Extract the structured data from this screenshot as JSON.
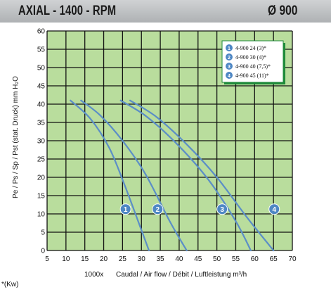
{
  "header": {
    "title": "AXIAL - 1400 - RPM",
    "diameter": "Ø 900"
  },
  "footnote": "*(Kw)",
  "colors": {
    "plot_bg": "#b9dd9d",
    "grid": "#111111",
    "curve": "#5b8ec7",
    "marker": "#4e87c4",
    "header": "#c0c2c4"
  },
  "chart_data": {
    "type": "line",
    "xlabel": "Caudal / Air flow / Débit / Luftleistung m³/h",
    "x_multiplier_label": "1000x",
    "ylabel": "Pe / Ps / Sp / Pst (stat. Druck) mm H₂O",
    "xlim": [
      5,
      70
    ],
    "ylim": [
      0,
      60
    ],
    "xticks": [
      5,
      10,
      15,
      20,
      25,
      30,
      35,
      40,
      45,
      50,
      55,
      60,
      65,
      70
    ],
    "yticks": [
      0,
      5,
      10,
      15,
      20,
      25,
      30,
      35,
      40,
      45,
      50,
      55,
      60
    ],
    "grid": true,
    "legend_position": "top-right",
    "series": [
      {
        "name": "4-900 24 (3)*",
        "marker": "1",
        "x": [
          11.2,
          16.5,
          21.5,
          25.5,
          29.5,
          32
        ],
        "y": [
          41,
          36,
          28,
          18,
          7,
          0
        ],
        "marker_at": [
          25.8,
          11.3
        ]
      },
      {
        "name": "4-900 30 (4)*",
        "marker": "2",
        "x": [
          14,
          19,
          25,
          31,
          37.5,
          42
        ],
        "y": [
          41,
          37,
          30,
          21,
          8,
          0
        ],
        "marker_at": [
          34.3,
          11.3
        ]
      },
      {
        "name": "4-900 40 (7,5)*",
        "marker": "3",
        "x": [
          24.5,
          31.5,
          40,
          48,
          55,
          59
        ],
        "y": [
          41,
          36.5,
          28.5,
          19,
          8,
          0
        ],
        "marker_at": [
          51.4,
          11.3
        ]
      },
      {
        "name": "4-900 45 (11)*",
        "marker": "4",
        "x": [
          27,
          34,
          42,
          50,
          58,
          65
        ],
        "y": [
          41,
          36.5,
          29,
          20,
          9,
          0
        ],
        "marker_at": [
          65.2,
          11.3
        ]
      }
    ]
  }
}
